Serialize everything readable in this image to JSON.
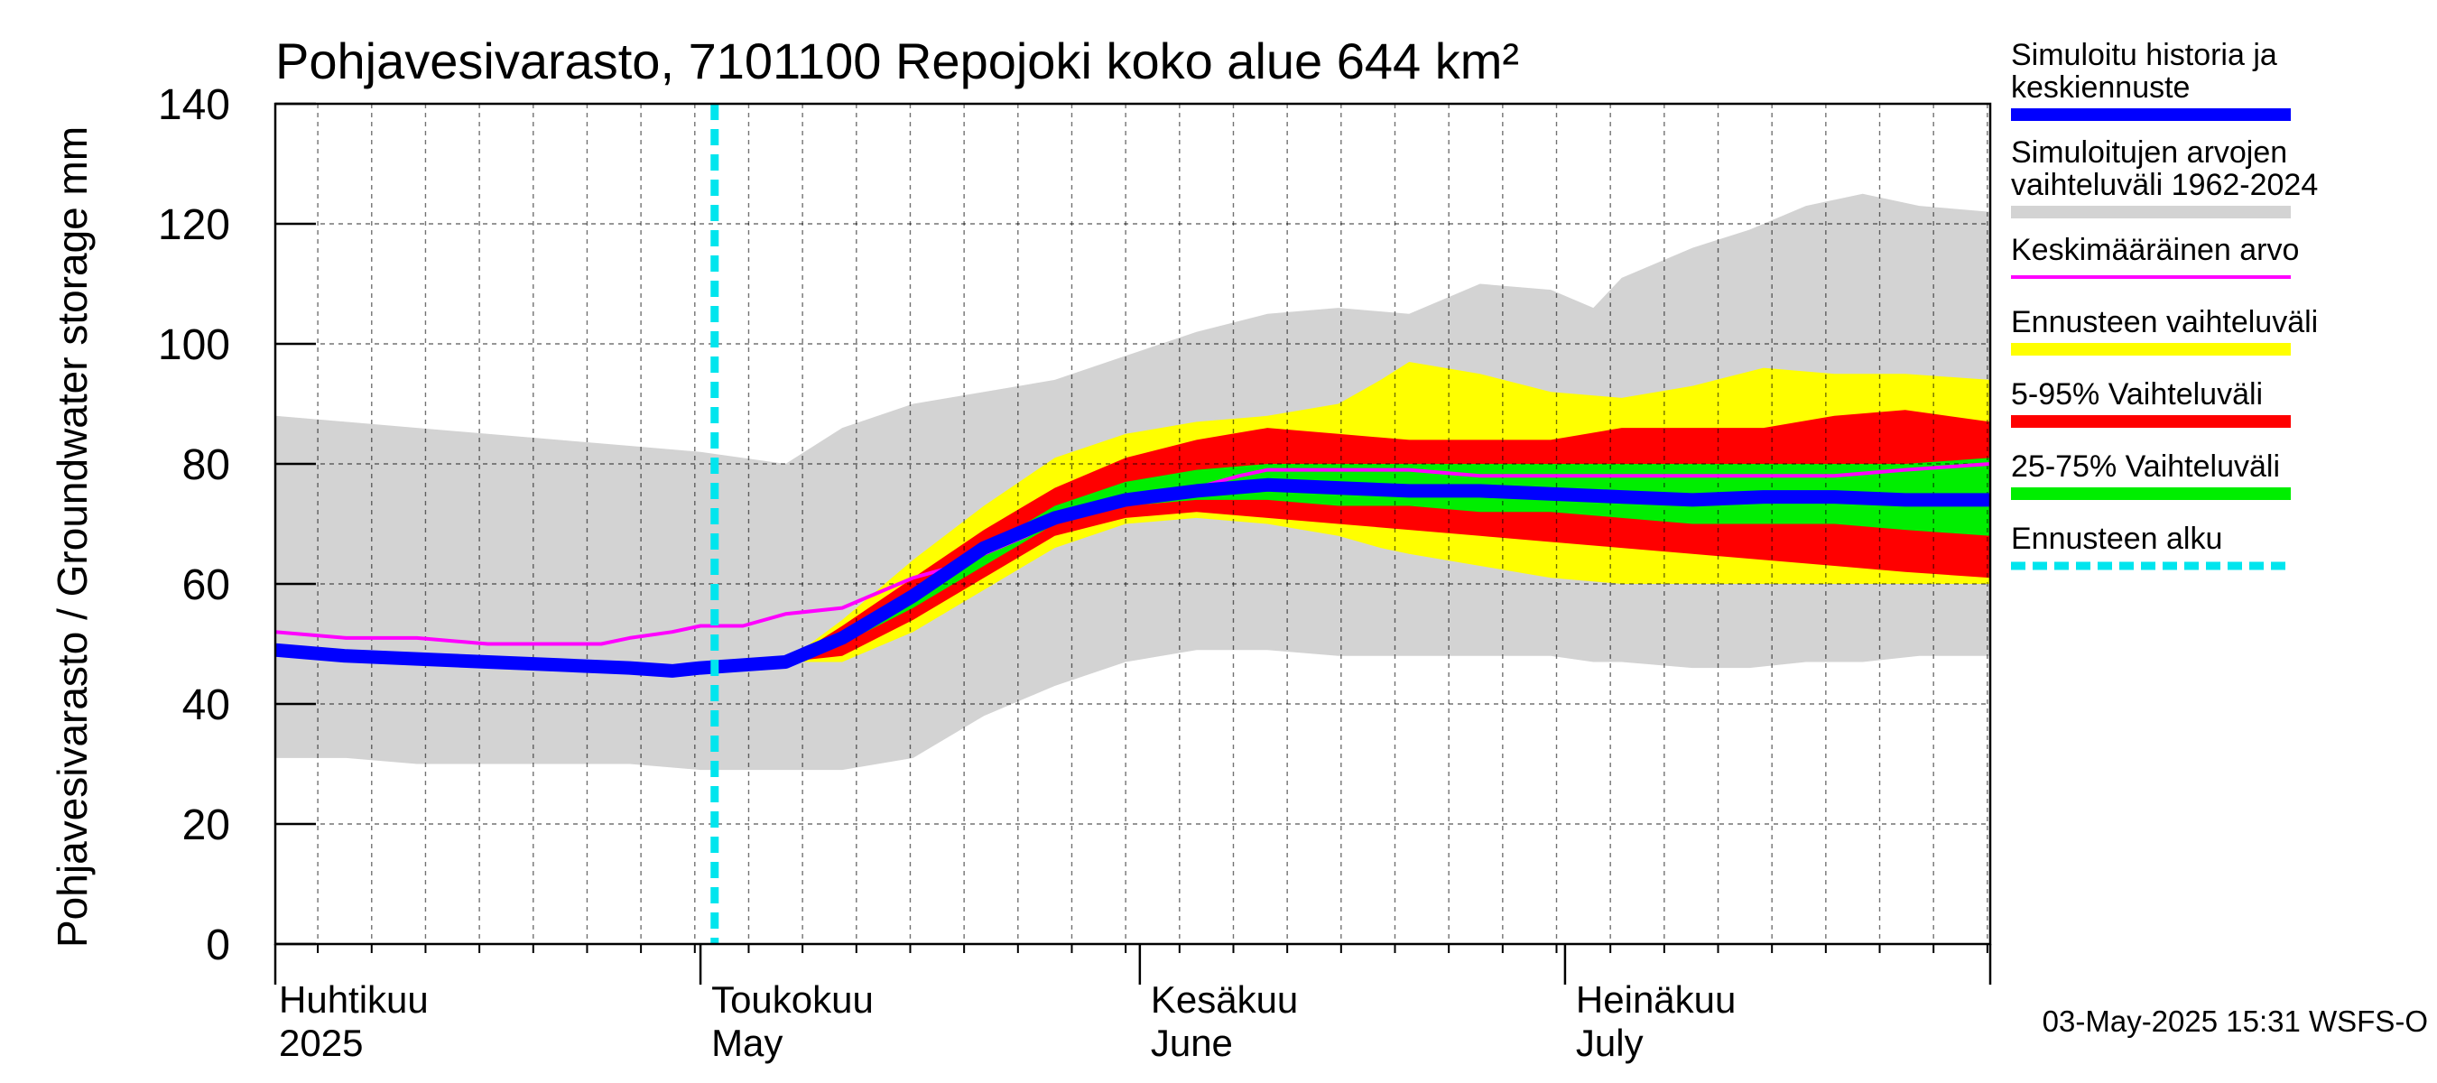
{
  "chart_data": {
    "type": "area",
    "title": "Pohjavesivarasto, 7101100 Repojoki koko alue 644 km²",
    "ylabel": "Pohjavesivarasto / Groundwater storage   mm",
    "ylim": [
      0,
      140
    ],
    "yticks": [
      "0",
      "20",
      "40",
      "60",
      "80",
      "100",
      "120",
      "140"
    ],
    "ytick_values": [
      0,
      20,
      40,
      60,
      80,
      100,
      120,
      140
    ],
    "xlim_days": [
      0,
      121
    ],
    "forecast_start_day": 31,
    "month_labels": [
      {
        "fi": "Huhtikuu",
        "en": "2025",
        "day": 0
      },
      {
        "fi": "Toukokuu",
        "en": "May",
        "day": 30
      },
      {
        "fi": "Kesäkuu",
        "en": "June",
        "day": 61
      },
      {
        "fi": "Heinäkuu",
        "en": "July",
        "day": 91
      }
    ],
    "series": [
      {
        "name": "Simuloitujen arvojen vaihteluväli 1962-2024",
        "kind": "band",
        "color": "#d3d3d3",
        "x": [
          0,
          5,
          10,
          15,
          20,
          25,
          30,
          36,
          40,
          45,
          50,
          55,
          60,
          65,
          70,
          75,
          80,
          85,
          90,
          93,
          95,
          100,
          104,
          108,
          112,
          116,
          121
        ],
        "upper": [
          88,
          87,
          86,
          85,
          84,
          83,
          82,
          80,
          86,
          90,
          92,
          94,
          98,
          102,
          105,
          106,
          105,
          110,
          109,
          106,
          111,
          116,
          119,
          123,
          125,
          123,
          122
        ],
        "lower": [
          31,
          31,
          30,
          30,
          30,
          30,
          29,
          29,
          29,
          31,
          38,
          43,
          47,
          49,
          49,
          48,
          48,
          48,
          48,
          47,
          47,
          46,
          46,
          47,
          47,
          48,
          48
        ]
      },
      {
        "name": "Ennusteen vaihteluväli",
        "kind": "band",
        "color": "#ffff00",
        "x": [
          36,
          40,
          45,
          50,
          55,
          60,
          65,
          70,
          75,
          78,
          80,
          85,
          90,
          95,
          100,
          105,
          110,
          115,
          121
        ],
        "upper": [
          47,
          54,
          64,
          73,
          81,
          85,
          87,
          88,
          90,
          94,
          97,
          95,
          92,
          91,
          93,
          96,
          95,
          95,
          94
        ],
        "lower": [
          47,
          47,
          52,
          59,
          66,
          70,
          71,
          70,
          68,
          66,
          65,
          63,
          61,
          60,
          60,
          60,
          60,
          60,
          60
        ]
      },
      {
        "name": "5-95% Vaihteluväli",
        "kind": "band",
        "color": "#ff0000",
        "x": [
          36,
          40,
          45,
          50,
          55,
          60,
          65,
          70,
          75,
          80,
          85,
          90,
          95,
          100,
          105,
          110,
          115,
          121
        ],
        "upper": [
          47,
          53,
          61,
          69,
          76,
          81,
          84,
          86,
          85,
          84,
          84,
          84,
          86,
          86,
          86,
          88,
          89,
          87
        ],
        "lower": [
          47,
          48,
          54,
          61,
          68,
          71,
          72,
          71,
          70,
          69,
          68,
          67,
          66,
          65,
          64,
          63,
          62,
          61
        ]
      },
      {
        "name": "25-75% Vaihteluväli",
        "kind": "band",
        "color": "#00ee00",
        "x": [
          36,
          40,
          45,
          50,
          55,
          60,
          65,
          70,
          75,
          80,
          85,
          90,
          95,
          100,
          105,
          110,
          115,
          121
        ],
        "upper": [
          47,
          52,
          59,
          66,
          73,
          77,
          79,
          80,
          80,
          80,
          80,
          80,
          80,
          80,
          80,
          80,
          80,
          81
        ],
        "lower": [
          47,
          50,
          56,
          63,
          70,
          73,
          74,
          74,
          73,
          73,
          72,
          72,
          71,
          70,
          70,
          70,
          69,
          68
        ]
      },
      {
        "name": "Keskimääräinen arvo",
        "kind": "line",
        "color": "#ff00ff",
        "x": [
          0,
          5,
          10,
          15,
          18,
          20,
          23,
          25,
          28,
          30,
          33,
          36,
          40,
          43,
          45,
          48,
          50,
          53,
          55,
          58,
          60,
          63,
          65,
          68,
          70,
          75,
          80,
          85,
          90,
          95,
          100,
          105,
          110,
          115,
          121
        ],
        "values": [
          52,
          51,
          51,
          50,
          50,
          50,
          50,
          51,
          52,
          53,
          53,
          55,
          56,
          59,
          61,
          63,
          65,
          68,
          71,
          73,
          74,
          75,
          76,
          78,
          79,
          79,
          79,
          78,
          78,
          78,
          78,
          78,
          78,
          79,
          80
        ]
      },
      {
        "name": "Simuloitu historia ja keskiennuste",
        "kind": "line",
        "color": "#0000ff",
        "x": [
          0,
          5,
          10,
          15,
          20,
          25,
          28,
          30,
          33,
          36,
          40,
          45,
          50,
          53,
          55,
          60,
          65,
          70,
          75,
          80,
          85,
          90,
          95,
          100,
          105,
          110,
          115,
          121
        ],
        "values": [
          49,
          48,
          47.5,
          47,
          46.5,
          46,
          45.5,
          46,
          46.5,
          47,
          51,
          58,
          66,
          69,
          71,
          74,
          75.5,
          76.5,
          76,
          75.5,
          75.5,
          75,
          74.5,
          74,
          74.5,
          74.5,
          74,
          74
        ]
      }
    ],
    "legend": [
      {
        "label": "Simuloitu historia ja",
        "label2": "keskiennuste",
        "color": "#0000ff",
        "style": "solid"
      },
      {
        "label": "Simuloitujen arvojen",
        "label2": "vaihteluväli 1962-2024",
        "color": "#d3d3d3",
        "style": "solid"
      },
      {
        "label": "Keskimääräinen arvo",
        "label2": "",
        "color": "#ff00ff",
        "style": "thin"
      },
      {
        "label": "Ennusteen vaihteluväli",
        "label2": "",
        "color": "#ffff00",
        "style": "solid"
      },
      {
        "label": "5-95% Vaihteluväli",
        "label2": "",
        "color": "#ff0000",
        "style": "solid"
      },
      {
        "label": "25-75% Vaihteluväli",
        "label2": "",
        "color": "#00ee00",
        "style": "solid"
      },
      {
        "label": "Ennusteen alku",
        "label2": "",
        "color": "#00e5ee",
        "style": "dashed"
      }
    ],
    "footer": "03-May-2025 15:31 WSFS-O"
  }
}
